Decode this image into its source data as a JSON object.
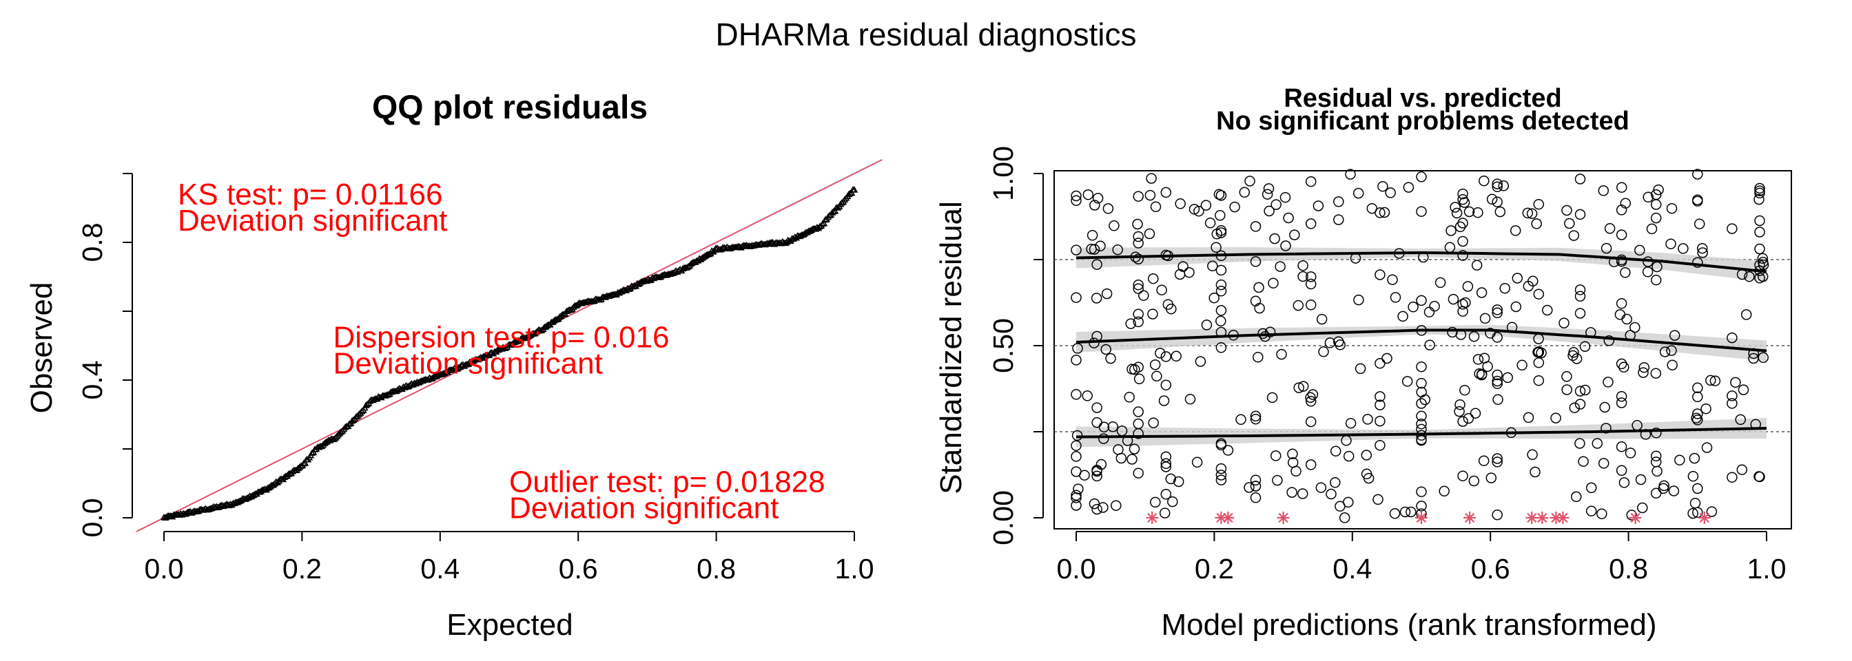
{
  "title": "DHARMa residual diagnostics",
  "colors": {
    "annotation": "#ff0000",
    "ref_line": "#df536b",
    "outlier": "#df536b",
    "band": "#d0d0d0"
  },
  "chart_data": [
    {
      "type": "scatter",
      "panel": "qq",
      "title": "QQ plot residuals",
      "xlabel": "Expected",
      "ylabel": "Observed",
      "xlim": [
        0,
        1
      ],
      "ylim": [
        0,
        1
      ],
      "xticks": [
        "0.0",
        "0.2",
        "0.4",
        "0.6",
        "0.8",
        "1.0"
      ],
      "yticks": [
        "0.0",
        "0.4",
        "0.8"
      ],
      "reference_line": {
        "intercept": 0,
        "slope": 1
      },
      "observed_curve": {
        "x": [
          0,
          0.05,
          0.1,
          0.15,
          0.2,
          0.22,
          0.25,
          0.28,
          0.3,
          0.35,
          0.4,
          0.45,
          0.5,
          0.55,
          0.6,
          0.65,
          0.7,
          0.75,
          0.8,
          0.85,
          0.9,
          0.95,
          1.0
        ],
        "y": [
          0,
          0.02,
          0.04,
          0.085,
          0.15,
          0.2,
          0.235,
          0.295,
          0.34,
          0.38,
          0.415,
          0.455,
          0.5,
          0.55,
          0.62,
          0.645,
          0.69,
          0.72,
          0.78,
          0.79,
          0.8,
          0.845,
          0.955
        ]
      },
      "annotations": [
        {
          "line1": "KS test: p= 0.01166",
          "line2": "Deviation  significant",
          "x": 0.02,
          "y": 0.91
        },
        {
          "line1": "Dispersion test: p= 0.016",
          "line2": "Deviation  significant",
          "x": 0.245,
          "y": 0.495
        },
        {
          "line1": "Outlier test: p= 0.01828",
          "line2": "Deviation  significant",
          "x": 0.5,
          "y": 0.075
        }
      ]
    },
    {
      "type": "scatter",
      "panel": "residual-vs-predicted",
      "title": "Residual vs. predicted",
      "subtitle": "No significant problems detected",
      "xlabel": "Model predictions (rank transformed)",
      "ylabel": "Standardized residual",
      "xlim": [
        0,
        1
      ],
      "ylim": [
        0,
        1
      ],
      "xticks": [
        "0.0",
        "0.2",
        "0.4",
        "0.6",
        "0.8",
        "1.0"
      ],
      "yticks": [
        "0.00",
        "0.50",
        "1.00"
      ],
      "reference_lines_y": [
        0.25,
        0.5,
        0.75
      ],
      "quantile_fits": [
        {
          "quantile": 0.25,
          "x": [
            0,
            0.25,
            0.5,
            0.75,
            1.0
          ],
          "y": [
            0.235,
            0.238,
            0.243,
            0.25,
            0.26
          ]
        },
        {
          "quantile": 0.5,
          "x": [
            0,
            0.25,
            0.5,
            0.6,
            0.75,
            1.0
          ],
          "y": [
            0.51,
            0.53,
            0.545,
            0.545,
            0.525,
            0.485
          ]
        },
        {
          "quantile": 0.75,
          "x": [
            0,
            0.25,
            0.5,
            0.7,
            0.85,
            1.0
          ],
          "y": [
            0.755,
            0.765,
            0.77,
            0.765,
            0.745,
            0.715
          ]
        }
      ],
      "outliers_x": [
        0.11,
        0.21,
        0.22,
        0.3,
        0.5,
        0.57,
        0.66,
        0.675,
        0.695,
        0.705,
        0.81,
        0.91
      ],
      "outlier_y": 0,
      "n_points": 500
    }
  ]
}
